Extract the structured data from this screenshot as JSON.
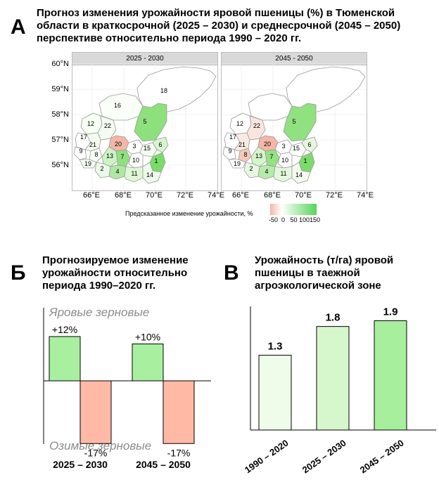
{
  "panel_a": {
    "letter": "А",
    "title": "Прогноз изменения урожайности яровой пшеницы (%) в Тюменской\nобласти в краткосрочной (2025 – 2030) и среднесрочной (2045 – 2050)\nперспективе относительно периода 1990 – 2020 гг.",
    "maps": [
      {
        "period": "2025 - 2030"
      },
      {
        "period": "2045 - 2050"
      }
    ],
    "lat_labels": [
      "60°N",
      "59°N",
      "58°N",
      "57°N",
      "56°N"
    ],
    "lon_labels": [
      "66°E",
      "68°E",
      "70°E",
      "72°E",
      "74°E"
    ],
    "region_ids": [
      "1",
      "2",
      "3",
      "4",
      "5",
      "6",
      "7",
      "8",
      "9",
      "10",
      "11",
      "12",
      "13",
      "14",
      "15",
      "16",
      "17",
      "18",
      "19",
      "20",
      "21",
      "22"
    ],
    "legend_label": "Предсказанное изменение урожайности, %",
    "legend_ticks": "-50  0   50 100150",
    "colors": {
      "negative": "#f4b6a6",
      "zero": "#ffffff",
      "positive": "#55d655",
      "border": "#999999"
    }
  },
  "panel_b": {
    "letter": "Б",
    "title": "Прогнозируемое изменение\nурожайности относительно\nпериода 1990–2020 гг."
  },
  "panel_c": {
    "letter": "В",
    "title": "Урожайность (т/га) яровой\nпшеницы в таежной\nагроэкологической зоне"
  },
  "chart_data": [
    {
      "type": "bar",
      "categories": [
        "2025 – 2030",
        "2045 – 2050"
      ],
      "series": [
        {
          "name": "Яровые зерновые",
          "values": [
            12,
            10
          ],
          "color": "#a8f0a0"
        },
        {
          "name": "Озимые зерновые",
          "values": [
            -17,
            -17
          ],
          "color": "#ffb9a5"
        }
      ],
      "data_labels": {
        "Яровые зерновые": [
          "+12%",
          "+10%"
        ],
        "Озимые зерновые": [
          "-17%",
          "-17%"
        ]
      },
      "ylim": [
        -21,
        21
      ],
      "xlabel": "",
      "ylabel": ""
    },
    {
      "type": "bar",
      "categories": [
        "1990 – 2020",
        "2025 – 2030",
        "2045 – 2050"
      ],
      "values": [
        1.3,
        1.8,
        1.9
      ],
      "data_labels": [
        "1.3",
        "1.8",
        "1.9"
      ],
      "colors": [
        "#effcea",
        "#d6f7cb",
        "#a7ef9c"
      ],
      "ylim": [
        0,
        2.15
      ],
      "xlabel": "",
      "ylabel": ""
    }
  ]
}
